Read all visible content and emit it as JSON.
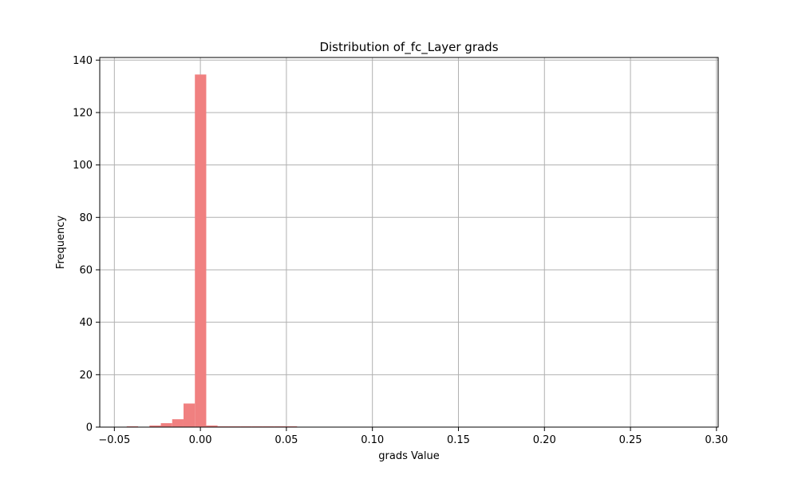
{
  "chart_data": {
    "type": "bar",
    "title": "Distribution of_fc_Layer grads",
    "xlabel": "grads Value",
    "ylabel": "Frequency",
    "xlim": [
      -0.0585,
      0.301
    ],
    "ylim": [
      0,
      141
    ],
    "xticks": [
      -0.05,
      0.0,
      0.05,
      0.1,
      0.15,
      0.2,
      0.25,
      0.3
    ],
    "xtick_labels": [
      "−0.05",
      "0.00",
      "0.05",
      "0.10",
      "0.15",
      "0.20",
      "0.25",
      "0.30"
    ],
    "yticks": [
      0,
      20,
      40,
      60,
      80,
      100,
      120,
      140
    ],
    "ytick_labels": [
      "0",
      "20",
      "40",
      "60",
      "80",
      "100",
      "120",
      "140"
    ],
    "grid": true,
    "bar_color": "#f08080",
    "bin_width": 0.0066,
    "bins": [
      {
        "x": -0.0428,
        "value": 0.3
      },
      {
        "x": -0.0362,
        "value": 0.1
      },
      {
        "x": -0.0296,
        "value": 0.6
      },
      {
        "x": -0.023,
        "value": 1.5
      },
      {
        "x": -0.0164,
        "value": 3.0
      },
      {
        "x": -0.0098,
        "value": 9.0
      },
      {
        "x": -0.0032,
        "value": 134.5
      },
      {
        "x": 0.0034,
        "value": 0.6
      },
      {
        "x": 0.01,
        "value": 0.3
      },
      {
        "x": 0.0166,
        "value": 0.3
      },
      {
        "x": 0.0232,
        "value": 0.3
      },
      {
        "x": 0.0298,
        "value": 0.3
      },
      {
        "x": 0.0364,
        "value": 0.3
      },
      {
        "x": 0.043,
        "value": 0.3
      },
      {
        "x": 0.0496,
        "value": 0.3
      }
    ]
  }
}
